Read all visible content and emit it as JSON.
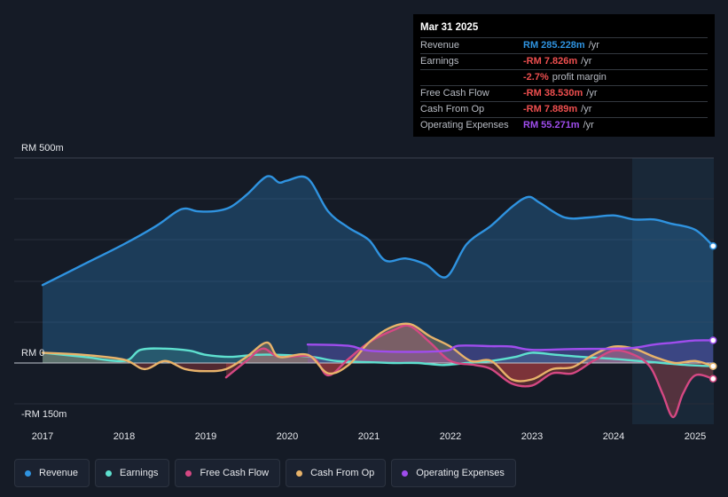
{
  "colors": {
    "revenue": "#2f93e0",
    "earnings": "#5ee0cf",
    "free_cash_flow": "#d54883",
    "cash_from_op": "#e8b36a",
    "operating_expenses": "#9f4ded",
    "negative": "#ee4f4f"
  },
  "tooltip": {
    "date": "Mar 31 2025",
    "rows": [
      {
        "label": "Revenue",
        "value": "RM 285.228m",
        "unit": "/yr",
        "color": "#2f93e0"
      },
      {
        "label": "Earnings",
        "value": "-RM 7.826m",
        "unit": "/yr",
        "color": "#ee4f4f"
      },
      {
        "label": "",
        "value": "-2.7%",
        "unit": "profit margin",
        "color": "#ee4f4f"
      },
      {
        "label": "Free Cash Flow",
        "value": "-RM 38.530m",
        "unit": "/yr",
        "color": "#ee4f4f"
      },
      {
        "label": "Cash From Op",
        "value": "-RM 7.889m",
        "unit": "/yr",
        "color": "#ee4f4f"
      },
      {
        "label": "Operating Expenses",
        "value": "RM 55.271m",
        "unit": "/yr",
        "color": "#9f4ded"
      }
    ]
  },
  "legend": [
    {
      "label": "Revenue",
      "color": "#2f93e0"
    },
    {
      "label": "Earnings",
      "color": "#5ee0cf"
    },
    {
      "label": "Free Cash Flow",
      "color": "#d54883"
    },
    {
      "label": "Cash From Op",
      "color": "#e8b36a"
    },
    {
      "label": "Operating Expenses",
      "color": "#9f4ded"
    }
  ],
  "chart_data": {
    "type": "area",
    "ylim": [
      -150,
      500
    ],
    "y_tick_labels": [
      {
        "value": 500,
        "label": "RM 500m"
      },
      {
        "value": 0,
        "label": "RM 0"
      },
      {
        "value": -150,
        "label": "-RM 150m"
      }
    ],
    "x_ticks": [
      2017,
      2018,
      2019,
      2020,
      2021,
      2022,
      2023,
      2024,
      2025
    ],
    "forecast_start": 2024.25,
    "series": [
      {
        "name": "Revenue",
        "key": "revenue",
        "points": [
          [
            2017,
            190
          ],
          [
            2017.5,
            240
          ],
          [
            2018,
            290
          ],
          [
            2018.4,
            335
          ],
          [
            2018.7,
            375
          ],
          [
            2018.9,
            370
          ],
          [
            2019.1,
            370
          ],
          [
            2019.3,
            380
          ],
          [
            2019.5,
            410
          ],
          [
            2019.75,
            455
          ],
          [
            2019.9,
            440
          ],
          [
            2020.0,
            445
          ],
          [
            2020.25,
            450
          ],
          [
            2020.5,
            370
          ],
          [
            2020.75,
            330
          ],
          [
            2021,
            300
          ],
          [
            2021.2,
            250
          ],
          [
            2021.45,
            255
          ],
          [
            2021.7,
            240
          ],
          [
            2021.95,
            210
          ],
          [
            2022.2,
            290
          ],
          [
            2022.5,
            335
          ],
          [
            2022.75,
            380
          ],
          [
            2022.95,
            405
          ],
          [
            2023.1,
            390
          ],
          [
            2023.4,
            355
          ],
          [
            2023.7,
            355
          ],
          [
            2024.0,
            360
          ],
          [
            2024.25,
            350
          ],
          [
            2024.5,
            350
          ],
          [
            2024.7,
            340
          ],
          [
            2025.0,
            325
          ],
          [
            2025.22,
            285.2
          ]
        ]
      },
      {
        "name": "Earnings",
        "key": "earnings",
        "points": [
          [
            2017,
            25
          ],
          [
            2017.5,
            15
          ],
          [
            2018.0,
            5
          ],
          [
            2018.2,
            32
          ],
          [
            2018.5,
            35
          ],
          [
            2018.8,
            30
          ],
          [
            2019.0,
            20
          ],
          [
            2019.3,
            15
          ],
          [
            2019.6,
            20
          ],
          [
            2019.9,
            20
          ],
          [
            2020.3,
            15
          ],
          [
            2020.6,
            5
          ],
          [
            2021.0,
            2
          ],
          [
            2021.3,
            0
          ],
          [
            2021.6,
            0
          ],
          [
            2021.9,
            -5
          ],
          [
            2022.2,
            0
          ],
          [
            2022.5,
            5
          ],
          [
            2022.8,
            15
          ],
          [
            2023.0,
            25
          ],
          [
            2023.3,
            20
          ],
          [
            2023.6,
            15
          ],
          [
            2024.0,
            10
          ],
          [
            2024.3,
            5
          ],
          [
            2024.6,
            0
          ],
          [
            2024.9,
            -5
          ],
          [
            2025.22,
            -7.8
          ]
        ]
      },
      {
        "name": "Free Cash Flow",
        "key": "free_cash_flow",
        "points": [
          [
            2019.25,
            -35
          ],
          [
            2019.5,
            5
          ],
          [
            2019.7,
            35
          ],
          [
            2019.9,
            15
          ],
          [
            2020.3,
            15
          ],
          [
            2020.5,
            -30
          ],
          [
            2020.75,
            10
          ],
          [
            2021.0,
            50
          ],
          [
            2021.3,
            80
          ],
          [
            2021.5,
            90
          ],
          [
            2021.75,
            50
          ],
          [
            2022.0,
            5
          ],
          [
            2022.3,
            -5
          ],
          [
            2022.5,
            -15
          ],
          [
            2022.75,
            -50
          ],
          [
            2023.0,
            -55
          ],
          [
            2023.25,
            -25
          ],
          [
            2023.5,
            -25
          ],
          [
            2023.75,
            5
          ],
          [
            2024.0,
            30
          ],
          [
            2024.25,
            20
          ],
          [
            2024.45,
            -10
          ],
          [
            2024.6,
            -75
          ],
          [
            2024.73,
            -132
          ],
          [
            2024.85,
            -75
          ],
          [
            2025.0,
            -30
          ],
          [
            2025.22,
            -38.5
          ]
        ]
      },
      {
        "name": "Cash From Op",
        "key": "cash_from_op",
        "points": [
          [
            2017,
            25
          ],
          [
            2017.5,
            20
          ],
          [
            2018.0,
            8
          ],
          [
            2018.25,
            -15
          ],
          [
            2018.5,
            5
          ],
          [
            2018.75,
            -15
          ],
          [
            2019.0,
            -20
          ],
          [
            2019.25,
            -15
          ],
          [
            2019.5,
            15
          ],
          [
            2019.75,
            50
          ],
          [
            2019.9,
            15
          ],
          [
            2020.25,
            20
          ],
          [
            2020.5,
            -25
          ],
          [
            2020.75,
            -5
          ],
          [
            2021.0,
            50
          ],
          [
            2021.25,
            85
          ],
          [
            2021.5,
            95
          ],
          [
            2021.75,
            65
          ],
          [
            2022.0,
            40
          ],
          [
            2022.25,
            5
          ],
          [
            2022.5,
            5
          ],
          [
            2022.75,
            -40
          ],
          [
            2023.0,
            -40
          ],
          [
            2023.25,
            -15
          ],
          [
            2023.5,
            -10
          ],
          [
            2023.75,
            20
          ],
          [
            2024.0,
            40
          ],
          [
            2024.25,
            35
          ],
          [
            2024.5,
            15
          ],
          [
            2024.75,
            0
          ],
          [
            2025.0,
            5
          ],
          [
            2025.22,
            -7.9
          ]
        ]
      },
      {
        "name": "Operating Expenses",
        "key": "operating_expenses",
        "points": [
          [
            2020.25,
            45
          ],
          [
            2020.75,
            42
          ],
          [
            2021.0,
            30
          ],
          [
            2021.5,
            27
          ],
          [
            2021.95,
            30
          ],
          [
            2022.1,
            42
          ],
          [
            2022.5,
            41
          ],
          [
            2022.75,
            40
          ],
          [
            2023.0,
            32
          ],
          [
            2023.5,
            34
          ],
          [
            2024.0,
            35
          ],
          [
            2024.25,
            37
          ],
          [
            2024.5,
            45
          ],
          [
            2024.75,
            50
          ],
          [
            2025.0,
            55
          ],
          [
            2025.22,
            55.3
          ]
        ]
      }
    ]
  }
}
